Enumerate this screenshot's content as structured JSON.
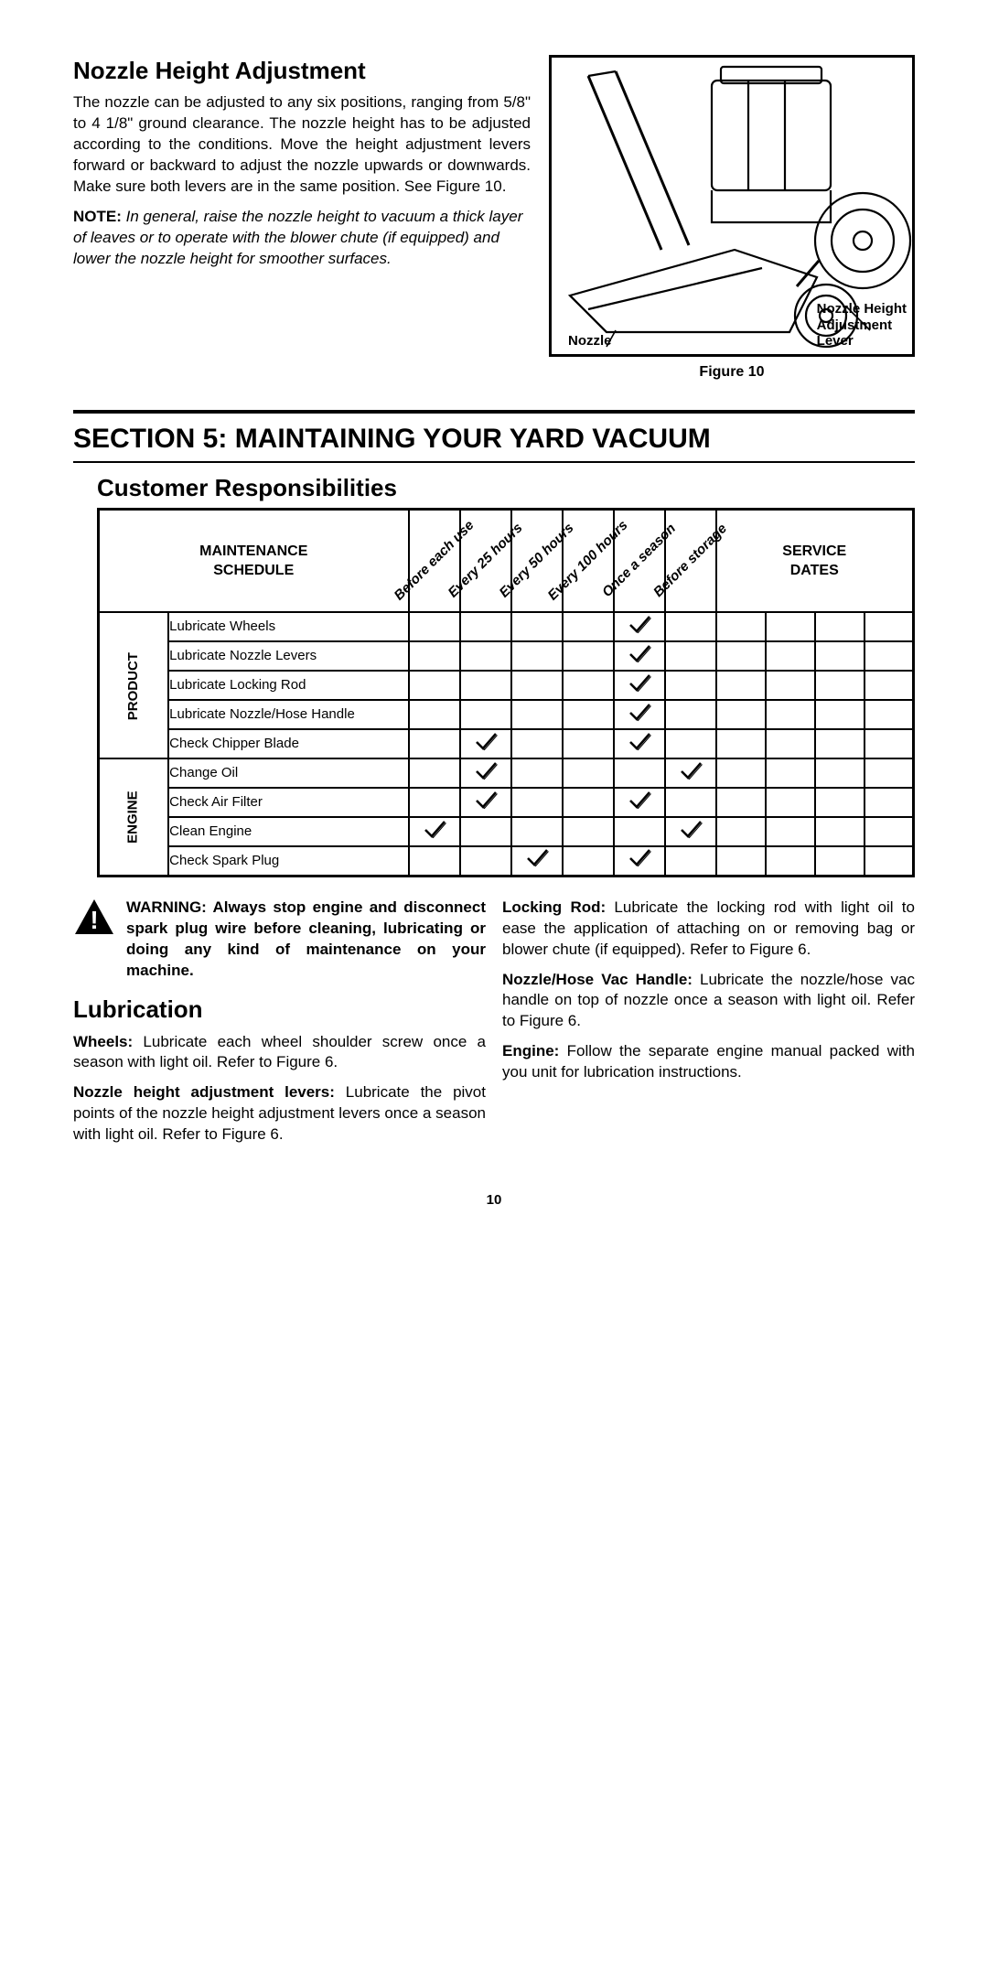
{
  "nozzle": {
    "title": "Nozzle Height Adjustment",
    "para1": "The nozzle can be adjusted to any six positions, ranging from 5/8\" to 4 1/8\" ground clearance. The nozzle height has to be adjusted according to the conditions. Move the height adjustment levers forward or backward to adjust the nozzle upwards or downwards. Make sure both levers are in the same position. See Figure 10.",
    "note_label": "NOTE:",
    "note_body": " In general, raise the nozzle height to vacuum a thick layer of leaves or to operate with the blower chute (if equipped) and lower the nozzle height for smoother surfaces."
  },
  "figure": {
    "caption": "Figure 10",
    "label_nozzle": "Nozzle",
    "label_lever": "Nozzle Height\nAdjustment\nLever"
  },
  "section": {
    "title": "SECTION 5:  MAINTAINING YOUR YARD VACUUM",
    "sub": "Customer Responsibilities"
  },
  "table": {
    "hdr_schedule": "MAINTENANCE\nSCHEDULE",
    "hdr_service": "SERVICE\nDATES",
    "diag": [
      "Before each use",
      "Every 25 hours",
      "Every 50 hours",
      "Every 100 hours",
      "Once a season",
      "Before storage"
    ],
    "group_product": "PRODUCT",
    "group_engine": "ENGINE",
    "rows_product": [
      {
        "task": "Lubricate Wheels",
        "checks": [
          false,
          false,
          false,
          false,
          true,
          false
        ]
      },
      {
        "task": "Lubricate Nozzle Levers",
        "checks": [
          false,
          false,
          false,
          false,
          true,
          false
        ]
      },
      {
        "task": "Lubricate Locking Rod",
        "checks": [
          false,
          false,
          false,
          false,
          true,
          false
        ]
      },
      {
        "task": "Lubricate Nozzle/Hose Handle",
        "checks": [
          false,
          false,
          false,
          false,
          true,
          false
        ]
      },
      {
        "task": "Check Chipper Blade",
        "checks": [
          false,
          true,
          false,
          false,
          true,
          false
        ]
      }
    ],
    "rows_engine": [
      {
        "task": "Change Oil",
        "checks": [
          false,
          true,
          false,
          false,
          false,
          true
        ]
      },
      {
        "task": "Check Air Filter",
        "checks": [
          false,
          true,
          false,
          false,
          true,
          false
        ]
      },
      {
        "task": "Clean Engine",
        "checks": [
          true,
          false,
          false,
          false,
          false,
          true
        ]
      },
      {
        "task": "Check Spark Plug",
        "checks": [
          false,
          false,
          true,
          false,
          true,
          false
        ]
      }
    ]
  },
  "warning": {
    "label": "WARNING:",
    "text": " Always stop engine and disconnect spark plug wire before cleaning, lubricating or doing any kind of maintenance on your machine."
  },
  "lub": {
    "title": "Lubrication",
    "wheels_b": "Wheels:",
    "wheels": " Lubricate each wheel shoulder screw once a season with light oil. Refer to Figure 6.",
    "levers_b": "Nozzle height adjustment levers:",
    "levers": " Lubricate the pivot points of the nozzle height adjustment levers once a season with light oil. Refer to Figure 6.",
    "rod_b": "Locking Rod:",
    "rod": " Lubricate the locking rod with light oil to ease the application of attaching on or removing bag or blower chute (if equipped). Refer to Figure 6.",
    "handle_b": "Nozzle/Hose Vac Handle:",
    "handle": " Lubricate the nozzle/hose vac handle on top of nozzle once a season with light oil. Refer to Figure 6.",
    "engine_b": "Engine:",
    "engine": " Follow the separate engine manual packed with you unit for lubrication instructions."
  },
  "page_number": "10",
  "colors": {
    "fg": "#000000",
    "bg": "#ffffff"
  }
}
